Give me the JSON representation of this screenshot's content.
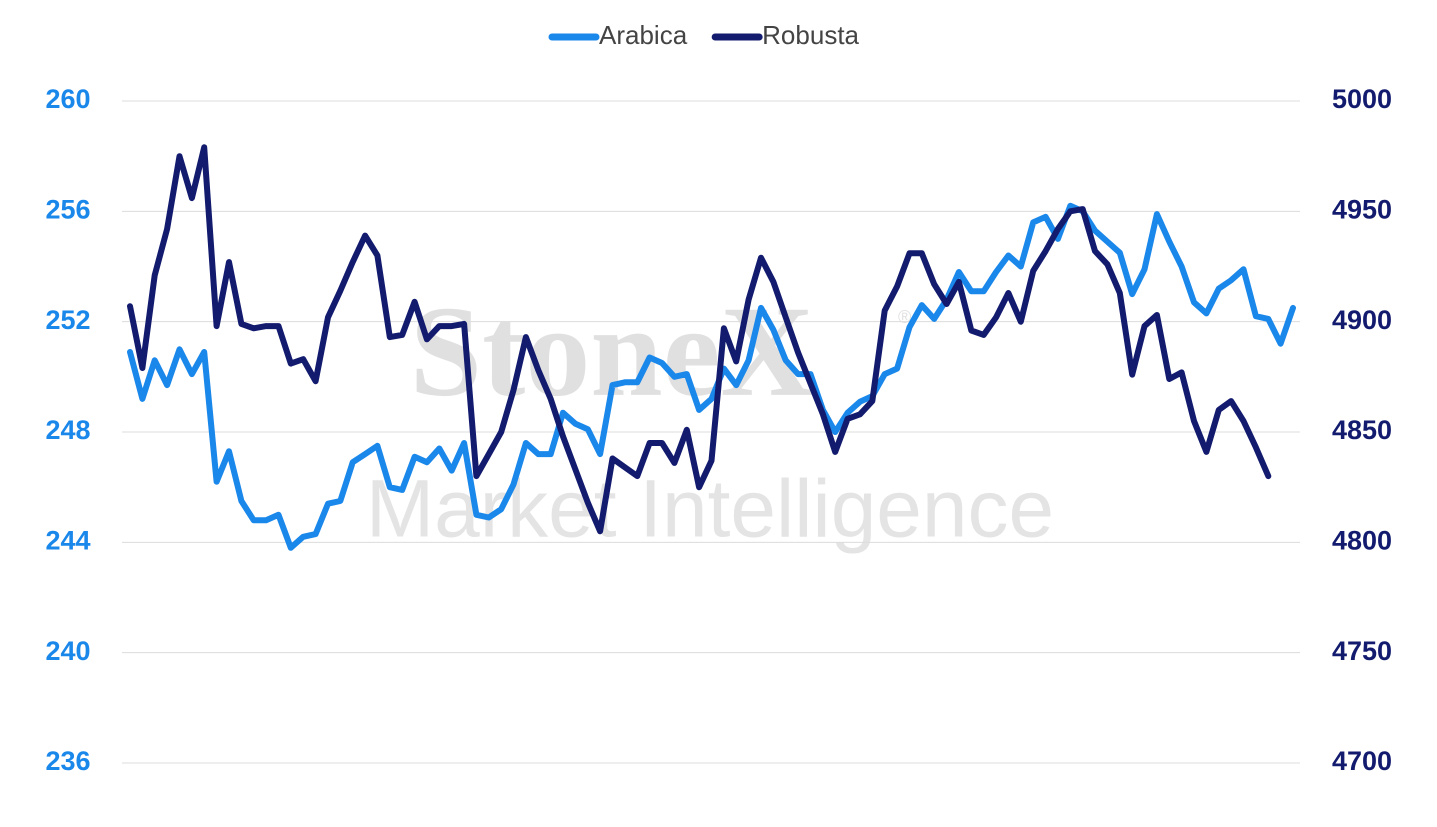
{
  "chart_data": {
    "type": "line",
    "watermark": {
      "brand": "StoneX",
      "mark": "®",
      "tagline": "Market Intelligence"
    },
    "categories": [
      null,
      null,
      null,
      null,
      null,
      null,
      null,
      null,
      null,
      null,
      null,
      null,
      null,
      null,
      null,
      null,
      null,
      null,
      null,
      null,
      null,
      null,
      null,
      null,
      null,
      null,
      null,
      null,
      null,
      null,
      null,
      null,
      null,
      null,
      null,
      null,
      null,
      null,
      null,
      null,
      null,
      null,
      null,
      null,
      null,
      null,
      null,
      null,
      null,
      null,
      null,
      null,
      null,
      null,
      null,
      null,
      null,
      null,
      null,
      null,
      null,
      null,
      null,
      null,
      null,
      null,
      null,
      null,
      null,
      null,
      null,
      null,
      null,
      null,
      null,
      null,
      null,
      null,
      null,
      null,
      null,
      null,
      null,
      null,
      null,
      null,
      null,
      null,
      null,
      null,
      null,
      null,
      null,
      null,
      null
    ],
    "ylim": [
      236,
      260
    ],
    "yticks": [
      236,
      240,
      244,
      248,
      252,
      256,
      260
    ],
    "y_color": "#1a87ea",
    "y2lim": [
      4700,
      5000
    ],
    "y2ticks": [
      4700,
      4750,
      4800,
      4850,
      4900,
      4950,
      5000
    ],
    "y2_color": "#131b6e",
    "grid": true,
    "legend": "top",
    "series": [
      {
        "name": "Arabica",
        "color": "#1a87ea",
        "values": [
          250.9,
          249.2,
          250.6,
          249.7,
          251.0,
          250.1,
          250.9,
          246.2,
          247.3,
          245.5,
          244.8,
          244.8,
          245.0,
          243.8,
          244.2,
          244.3,
          245.4,
          245.5,
          246.9,
          247.2,
          247.5,
          246.0,
          245.9,
          247.1,
          246.9,
          247.4,
          246.6,
          247.6,
          245.0,
          244.9,
          245.2,
          246.1,
          247.6,
          247.2,
          247.2,
          248.7,
          248.3,
          248.1,
          247.2,
          249.7,
          249.8,
          249.8,
          250.7,
          250.5,
          250.0,
          250.1,
          248.8,
          249.2,
          250.3,
          249.7,
          250.6,
          252.5,
          251.7,
          250.6,
          250.1,
          250.1,
          248.8,
          248.0,
          248.7,
          249.1,
          249.3,
          250.1,
          250.3,
          251.8,
          252.6,
          252.1,
          252.8,
          253.8,
          253.1,
          253.1,
          253.8,
          254.4,
          254.0,
          255.6,
          255.8,
          255.0,
          256.2,
          256.0,
          255.3,
          254.9,
          254.5,
          253.0,
          253.9,
          255.9,
          254.9,
          254.0,
          252.7,
          252.3,
          253.2,
          253.5,
          253.9,
          252.2,
          252.1,
          251.2,
          252.5
        ]
      },
      {
        "name": "Robusta",
        "color": "#131b6e",
        "axis": "y2",
        "values": [
          4907,
          4879,
          4921,
          4942,
          4975,
          4956,
          4979,
          4898,
          4927,
          4899,
          4897,
          4898,
          4898,
          4881,
          4883,
          4873,
          4902,
          4914,
          4927,
          4939,
          4930,
          4893,
          4894,
          4909,
          4892,
          4898,
          4898,
          4899,
          4830,
          4840,
          4850,
          4869,
          4893,
          4878,
          4865,
          4848,
          4833,
          4818,
          4805,
          4838,
          4834,
          4830,
          4845,
          4845,
          4836,
          4851,
          4825,
          4837,
          4897,
          4882,
          4910,
          4929,
          4918,
          4902,
          4886,
          4872,
          4858,
          4841,
          4856,
          4858,
          4864,
          4905,
          4916,
          4931,
          4931,
          4917,
          4908,
          4918,
          4896,
          4894,
          4902,
          4913,
          4900,
          4923,
          4932,
          4942,
          4950,
          4951,
          4932,
          4926,
          4913,
          4876,
          4898,
          4903,
          4874,
          4877,
          4855,
          4841,
          4860,
          4864,
          4855,
          4843,
          4830,
          null,
          null
        ]
      }
    ]
  }
}
